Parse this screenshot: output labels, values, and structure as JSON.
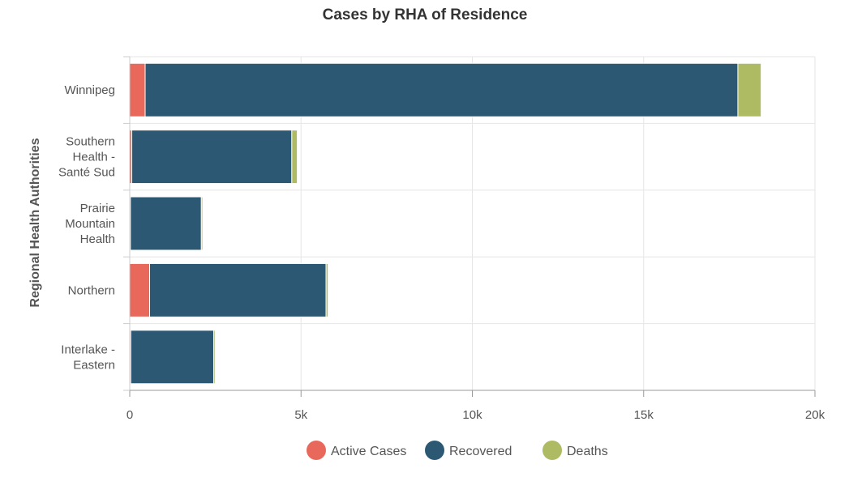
{
  "chart_data": {
    "type": "bar",
    "orientation": "horizontal",
    "stacked": true,
    "title": "Cases by RHA of Residence",
    "ylabel": "Regional Health Authorities",
    "xlabel": "",
    "categories": [
      [
        "Winnipeg"
      ],
      [
        "Southern",
        "Health -",
        "Santé Sud"
      ],
      [
        "Prairie",
        "Mountain",
        "Health"
      ],
      [
        "Northern"
      ],
      [
        "Interlake -",
        "Eastern"
      ]
    ],
    "series": [
      {
        "name": "Active Cases",
        "color": "#e8695b",
        "values": [
          450,
          60,
          20,
          580,
          30
        ]
      },
      {
        "name": "Recovered",
        "color": "#2c5874",
        "values": [
          17300,
          4670,
          2070,
          5150,
          2420
        ]
      },
      {
        "name": "Deaths",
        "color": "#aebb63",
        "values": [
          680,
          160,
          40,
          60,
          40
        ]
      }
    ],
    "xlim": [
      0,
      20000
    ],
    "xticks": [
      0,
      5000,
      10000,
      15000,
      20000
    ],
    "xtick_labels": [
      "0",
      "5k",
      "10k",
      "15k",
      "20k"
    ],
    "grid": true,
    "legend_position": "bottom"
  }
}
